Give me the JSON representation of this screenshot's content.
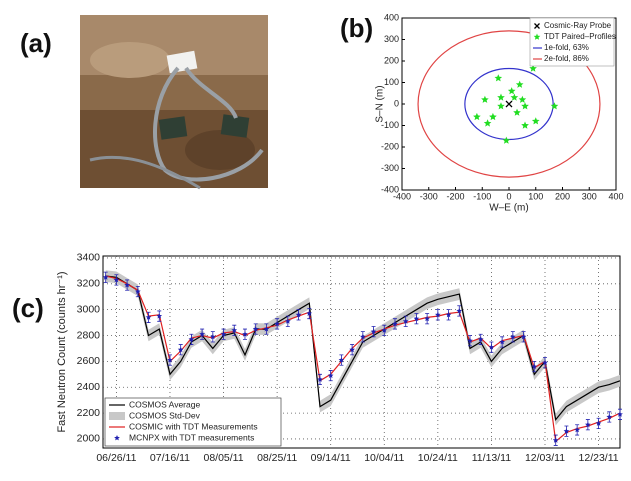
{
  "panel_labels": [
    "(a)",
    "(b)",
    "(c)"
  ],
  "chart_data": [
    {
      "type": "scatter",
      "xlabel": "W–E (m)",
      "ylabel": "S–N (m)",
      "xlim": [
        -400,
        400
      ],
      "ylim": [
        -400,
        400
      ],
      "xticks": [
        -400,
        -300,
        -200,
        -100,
        0,
        100,
        200,
        300,
        400
      ],
      "yticks": [
        -400,
        -300,
        -200,
        -100,
        0,
        100,
        200,
        300,
        400
      ],
      "legend": "upper right",
      "series": [
        {
          "name": "Cosmic-Ray Probe",
          "color": "#000000",
          "marker": "x",
          "x": [
            0
          ],
          "values": [
            0
          ]
        },
        {
          "name": "TDT Paired–Profiles",
          "color": "#22dd22",
          "marker": "star",
          "x": [
            -40,
            90,
            40,
            10,
            -30,
            -90,
            20,
            50,
            60,
            170,
            -30,
            -120,
            -60,
            -80,
            30,
            100,
            60,
            -10
          ],
          "values": [
            120,
            165,
            90,
            60,
            30,
            20,
            30,
            20,
            -10,
            -10,
            -10,
            -60,
            -60,
            -90,
            -40,
            -80,
            -100,
            -170
          ]
        }
      ],
      "circles": [
        {
          "name": "1e-fold, 63%",
          "color": "#3333cc",
          "radius": 165
        },
        {
          "name": "2e-fold, 86%",
          "color": "#e04444",
          "radius": 340
        }
      ]
    },
    {
      "type": "line",
      "ylabel": "Fast Neutron Count (counts hr⁻¹)",
      "xlim": [
        "06/21/11",
        "12/31/11"
      ],
      "xticks": [
        "06/26/11",
        "07/16/11",
        "08/05/11",
        "08/25/11",
        "09/14/11",
        "10/04/11",
        "10/24/11",
        "11/13/11",
        "12/03/11",
        "12/23/11"
      ],
      "ylim": [
        1930,
        3415
      ],
      "yticks": [
        2000,
        2200,
        2400,
        2600,
        2800,
        3000,
        3200,
        3400
      ],
      "grid": true,
      "legend": "lower left",
      "x": [
        "06/22/11",
        "06/26/11",
        "06/30/11",
        "07/04/11",
        "07/08/11",
        "07/12/11",
        "07/16/11",
        "07/20/11",
        "07/24/11",
        "07/28/11",
        "08/01/11",
        "08/05/11",
        "08/09/11",
        "08/13/11",
        "08/17/11",
        "08/21/11",
        "08/25/11",
        "08/29/11",
        "09/02/11",
        "09/06/11",
        "09/10/11",
        "09/14/11",
        "09/18/11",
        "09/22/11",
        "09/26/11",
        "09/30/11",
        "10/04/11",
        "10/08/11",
        "10/12/11",
        "10/16/11",
        "10/20/11",
        "10/24/11",
        "10/28/11",
        "11/01/11",
        "11/05/11",
        "11/09/11",
        "11/13/11",
        "11/17/11",
        "11/21/11",
        "11/25/11",
        "11/29/11",
        "12/03/11",
        "12/07/11",
        "12/11/11",
        "12/15/11",
        "12/19/11",
        "12/23/11",
        "12/27/11",
        "12/31/11"
      ],
      "series": [
        {
          "name": "COSMOS Average",
          "color": "#000000",
          "values": [
            3260,
            3250,
            3200,
            3150,
            2800,
            2850,
            2500,
            2600,
            2750,
            2800,
            2700,
            2800,
            2820,
            2650,
            2850,
            2850,
            2900,
            2950,
            3000,
            3050,
            2250,
            2300,
            2450,
            2600,
            2750,
            2800,
            2850,
            2900,
            2950,
            3000,
            3050,
            3080,
            3100,
            3120,
            2700,
            2750,
            2600,
            2700,
            2750,
            2800,
            2500,
            2600,
            2150,
            2250,
            2300,
            2350,
            2400,
            2420,
            2450
          ]
        },
        {
          "name": "COSMOS Std-Dev",
          "color": "#c8c8c8",
          "values": [
            45,
            45,
            45,
            45,
            45,
            45,
            45,
            45,
            45,
            45,
            45,
            45,
            45,
            45,
            45,
            45,
            45,
            45,
            45,
            45,
            45,
            45,
            45,
            45,
            45,
            45,
            45,
            45,
            45,
            45,
            45,
            45,
            45,
            45,
            45,
            45,
            45,
            45,
            45,
            45,
            45,
            45,
            45,
            45,
            45,
            45,
            45,
            45,
            45
          ]
        },
        {
          "name": "COSMIC with TDT Measurements",
          "color": "#e02020",
          "values": [
            3260,
            3240,
            3200,
            3150,
            2950,
            2960,
            2600,
            2680,
            2780,
            2800,
            2780,
            2820,
            2830,
            2800,
            2840,
            2860,
            2880,
            2920,
            2950,
            2980,
            2450,
            2500,
            2600,
            2700,
            2780,
            2820,
            2850,
            2880,
            2900,
            2920,
            2940,
            2950,
            2970,
            2980,
            2750,
            2780,
            2700,
            2760,
            2780,
            2800,
            2550,
            2600,
            1980,
            2050,
            2080,
            2100,
            2130,
            2160,
            2200
          ]
        },
        {
          "name": "MCNPX with TDT measurements",
          "color": "#2020b0",
          "error": 40,
          "values": [
            3250,
            3230,
            3190,
            3140,
            2940,
            2950,
            2610,
            2690,
            2770,
            2810,
            2790,
            2810,
            2840,
            2810,
            2850,
            2850,
            2890,
            2910,
            2960,
            2970,
            2460,
            2490,
            2610,
            2690,
            2790,
            2830,
            2840,
            2890,
            2910,
            2930,
            2930,
            2960,
            2960,
            2990,
            2760,
            2770,
            2710,
            2750,
            2790,
            2790,
            2560,
            2590,
            1990,
            2060,
            2070,
            2110,
            2120,
            2170,
            2190
          ]
        }
      ]
    }
  ]
}
